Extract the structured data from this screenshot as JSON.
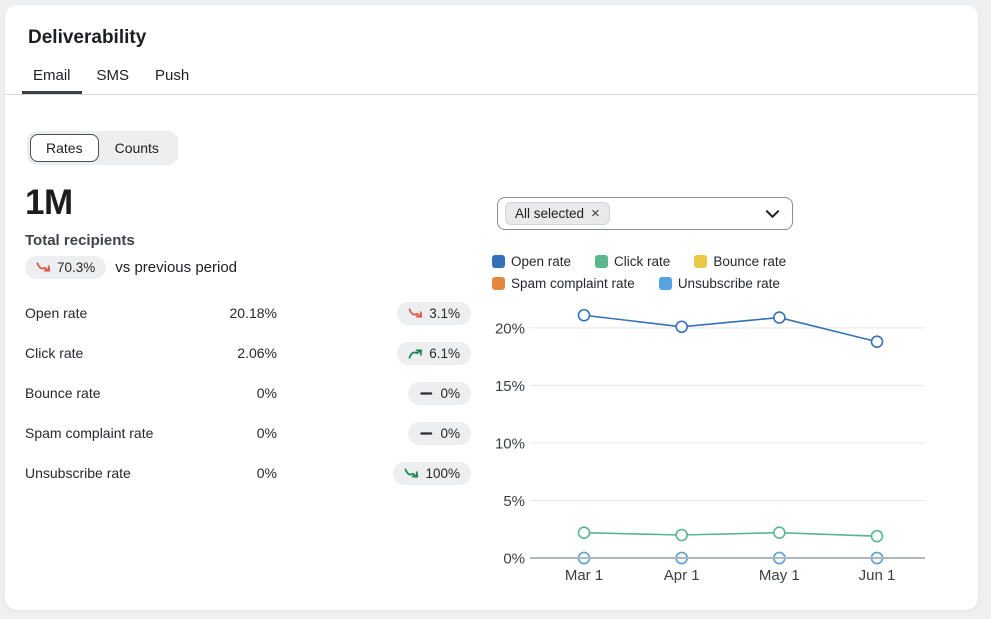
{
  "header": {
    "title": "Deliverability",
    "tabs": [
      {
        "label": "Email",
        "active": true
      },
      {
        "label": "SMS",
        "active": false
      },
      {
        "label": "Push",
        "active": false
      }
    ]
  },
  "toggle": {
    "options": [
      {
        "label": "Rates",
        "selected": true
      },
      {
        "label": "Counts",
        "selected": false
      }
    ]
  },
  "summary": {
    "total_value": "1M",
    "total_label": "Total recipients",
    "change": {
      "value": "70.3%",
      "trend": "down",
      "trend_color": "red"
    },
    "change_suffix": "vs previous period"
  },
  "metrics": [
    {
      "label": "Open rate",
      "value": "20.18%",
      "change": "3.1%",
      "trend": "down",
      "trend_color": "red"
    },
    {
      "label": "Click rate",
      "value": "2.06%",
      "change": "6.1%",
      "trend": "up",
      "trend_color": "green"
    },
    {
      "label": "Bounce rate",
      "value": "0%",
      "change": "0%",
      "trend": "flat",
      "trend_color": "neutral"
    },
    {
      "label": "Spam complaint rate",
      "value": "0%",
      "change": "0%",
      "trend": "flat",
      "trend_color": "neutral"
    },
    {
      "label": "Unsubscribe rate",
      "value": "0%",
      "change": "100%",
      "trend": "down",
      "trend_color": "green"
    }
  ],
  "filter": {
    "chip_label": "All selected",
    "remove_glyph": "×"
  },
  "chart_data": {
    "type": "line",
    "x": [
      "Mar 1",
      "Apr 1",
      "May 1",
      "Jun 1"
    ],
    "series": [
      {
        "name": "Open rate",
        "color": "#3471b8",
        "values": [
          21.1,
          20.1,
          20.9,
          18.8
        ]
      },
      {
        "name": "Click rate",
        "color": "#5ab78b",
        "values": [
          2.2,
          2.0,
          2.2,
          1.9
        ]
      },
      {
        "name": "Bounce rate",
        "color": "#e9c944",
        "values": [
          0,
          0,
          0,
          0
        ]
      },
      {
        "name": "Spam complaint rate",
        "color": "#e2883e",
        "values": [
          0,
          0,
          0,
          0
        ]
      },
      {
        "name": "Unsubscribe rate",
        "color": "#55a3e0",
        "values": [
          0,
          0,
          0,
          0
        ]
      }
    ],
    "ylim": [
      0,
      22.6
    ],
    "yticks": [
      0,
      5,
      10,
      15,
      20
    ],
    "ytick_format": "{v}%",
    "grid": true,
    "legend_position": "top",
    "marker": "open-circle"
  }
}
